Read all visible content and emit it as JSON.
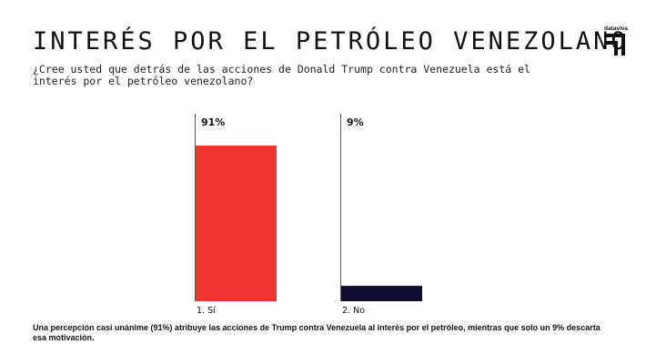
{
  "header": {
    "title": "INTERÉS POR EL PETRÓLEO VENEZOLANO",
    "subtitle": "¿Cree usted que detrás de las acciones de Donald Trump contra Venezuela está el interés por el petróleo venezolano?"
  },
  "logo": {
    "text": "dataviva"
  },
  "chart_data": {
    "type": "bar",
    "categories": [
      "1. Sí",
      "2. No"
    ],
    "values": [
      91,
      9
    ],
    "value_labels": [
      "91%",
      "9%"
    ],
    "colors": [
      "#ee3530",
      "#100e30"
    ],
    "ylim": [
      0,
      100
    ],
    "grid": false,
    "legend": "none"
  },
  "footer": {
    "note": "Una percepción casi unánime (91%) atribuye las acciones de Trump contra Venezuela al interés por el petróleo, mientras que solo un 9% descarta esa motivación."
  }
}
